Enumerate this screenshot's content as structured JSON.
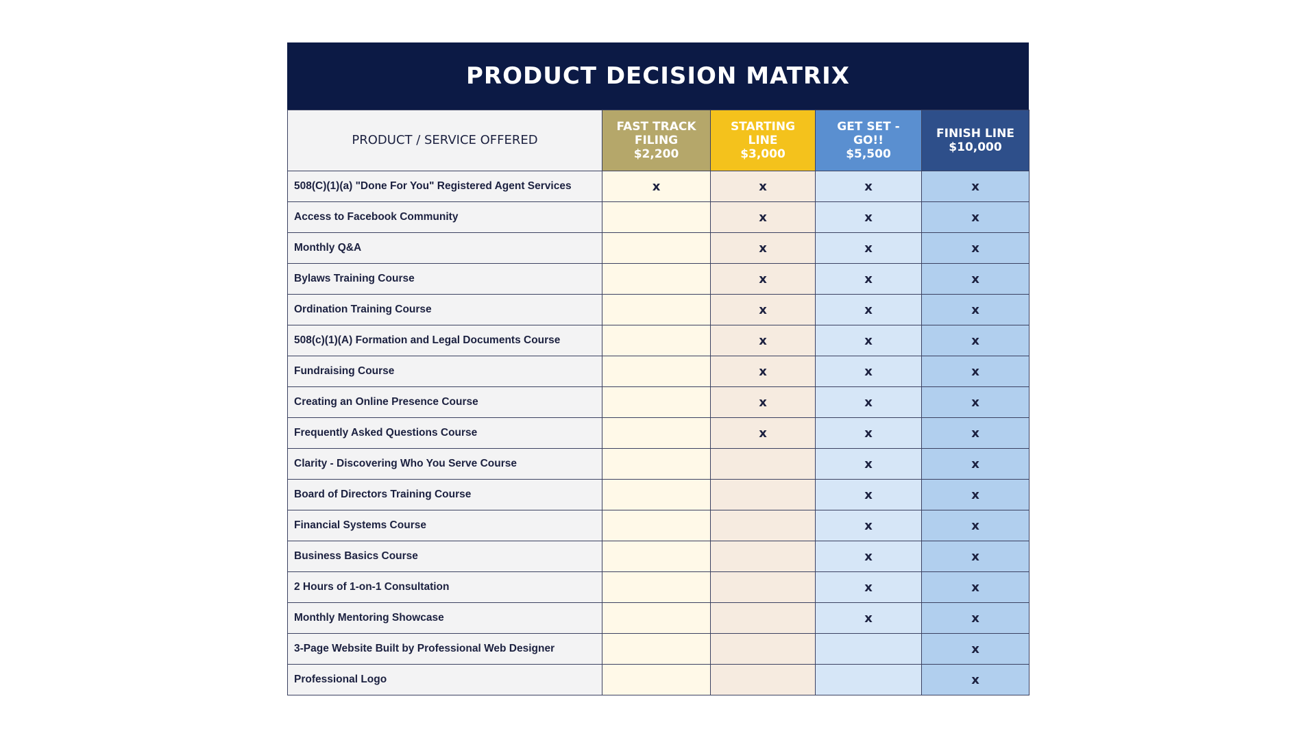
{
  "header": {
    "title": "PRODUCT DECISION MATRIX"
  },
  "table": {
    "first_column_header": "PRODUCT / SERVICE OFFERED",
    "plans": [
      {
        "name": "FAST TRACK FILING",
        "price": "$2,200"
      },
      {
        "name": "STARTING LINE",
        "price": "$3,000"
      },
      {
        "name": "GET SET - GO!!",
        "price": "$5,500"
      },
      {
        "name": "FINISH LINE",
        "price": "$10,000"
      }
    ],
    "rows": [
      {
        "label": "508(C)(1)(a) \"Done For You\" Registered Agent Services",
        "cells": [
          "x",
          "x",
          "x",
          "x"
        ]
      },
      {
        "label": "Access to Facebook Community",
        "cells": [
          null,
          "x",
          "x",
          "x"
        ]
      },
      {
        "label": "Monthly Q&A",
        "cells": [
          null,
          "x",
          "x",
          "x"
        ]
      },
      {
        "label": "Bylaws Training Course",
        "cells": [
          null,
          "x",
          "x",
          "x"
        ]
      },
      {
        "label": "Ordination Training Course",
        "cells": [
          null,
          "x",
          "x",
          "x"
        ]
      },
      {
        "label": "508(c)(1)(A) Formation and Legal Documents Course",
        "cells": [
          null,
          "x",
          "x",
          "x"
        ]
      },
      {
        "label": "Fundraising Course",
        "cells": [
          null,
          "x",
          "x",
          "x"
        ]
      },
      {
        "label": "Creating an Online Presence Course",
        "cells": [
          null,
          "x",
          "x",
          "x"
        ]
      },
      {
        "label": "Frequently Asked Questions Course",
        "cells": [
          null,
          "x",
          "x",
          "x"
        ]
      },
      {
        "label": "Clarity - Discovering Who You Serve Course",
        "cells": [
          null,
          null,
          "x",
          "x"
        ]
      },
      {
        "label": "Board of Directors Training Course",
        "cells": [
          null,
          null,
          "x",
          "x"
        ]
      },
      {
        "label": "Financial Systems Course",
        "cells": [
          null,
          null,
          "x",
          "x"
        ]
      },
      {
        "label": "Business Basics Course",
        "cells": [
          null,
          null,
          "x",
          "x"
        ]
      },
      {
        "label": "2 Hours of 1-on-1 Consultation",
        "cells": [
          null,
          null,
          "x",
          "x"
        ]
      },
      {
        "label": "Monthly Mentoring Showcase",
        "cells": [
          null,
          null,
          "x",
          "x"
        ]
      },
      {
        "label": "3-Page Website Built by Professional Web Designer",
        "cells": [
          null,
          null,
          null,
          "x"
        ]
      },
      {
        "label": "Professional Logo",
        "cells": [
          null,
          null,
          null,
          "x"
        ]
      }
    ]
  }
}
